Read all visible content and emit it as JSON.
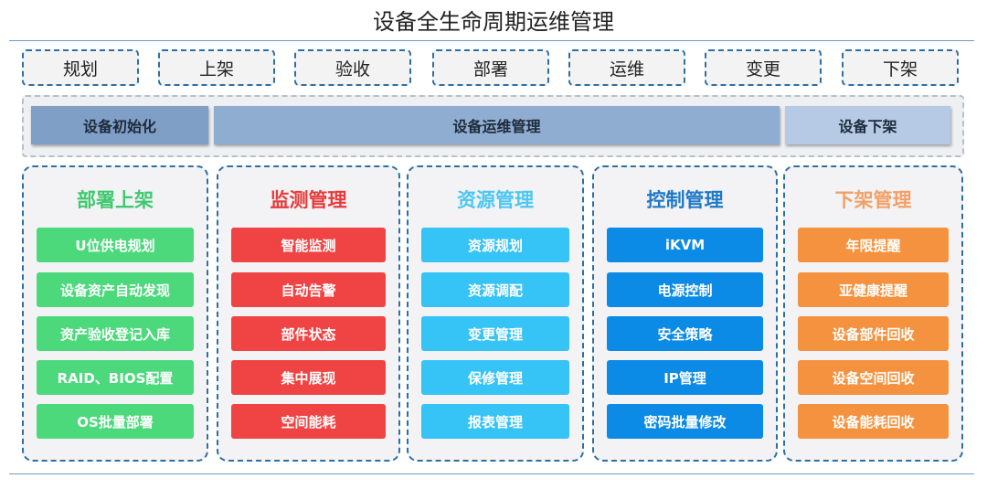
{
  "title": "设备全生命周期运维管理",
  "stages": [
    "规划",
    "上架",
    "验收",
    "部署",
    "运维",
    "变更",
    "下架"
  ],
  "phases": [
    {
      "label": "设备初始化",
      "color": "#7f9fc6"
    },
    {
      "label": "设备运维管理",
      "color": "#8eadd0"
    },
    {
      "label": "设备下架",
      "color": "#b6cae6"
    }
  ],
  "columns": [
    {
      "title": "部署上架",
      "title_color": "#3fc96e",
      "item_color": "#4cd97b",
      "items": [
        "U位供电规划",
        "设备资产自动发现",
        "资产验收登记入库",
        "RAID、BIOS配置",
        "OS批量部署"
      ]
    },
    {
      "title": "监测管理",
      "title_color": "#e63b3b",
      "item_color": "#f04444",
      "items": [
        "智能监测",
        "自动告警",
        "部件状态",
        "集中展现",
        "空间能耗"
      ]
    },
    {
      "title": "资源管理",
      "title_color": "#4cc6f2",
      "item_color": "#36c3f5",
      "items": [
        "资源规划",
        "资源调配",
        "变更管理",
        "保修管理",
        "报表管理"
      ]
    },
    {
      "title": "控制管理",
      "title_color": "#1f78c6",
      "item_color": "#0b8ae6",
      "items": [
        "iKVM",
        "电源控制",
        "安全策略",
        "IP管理",
        "密码批量修改"
      ]
    },
    {
      "title": "下架管理",
      "title_color": "#f2a066",
      "item_color": "#f5923f",
      "items": [
        "年限提醒",
        "亚健康提醒",
        "设备部件回收",
        "设备空间回收",
        "设备能耗回收"
      ]
    }
  ]
}
